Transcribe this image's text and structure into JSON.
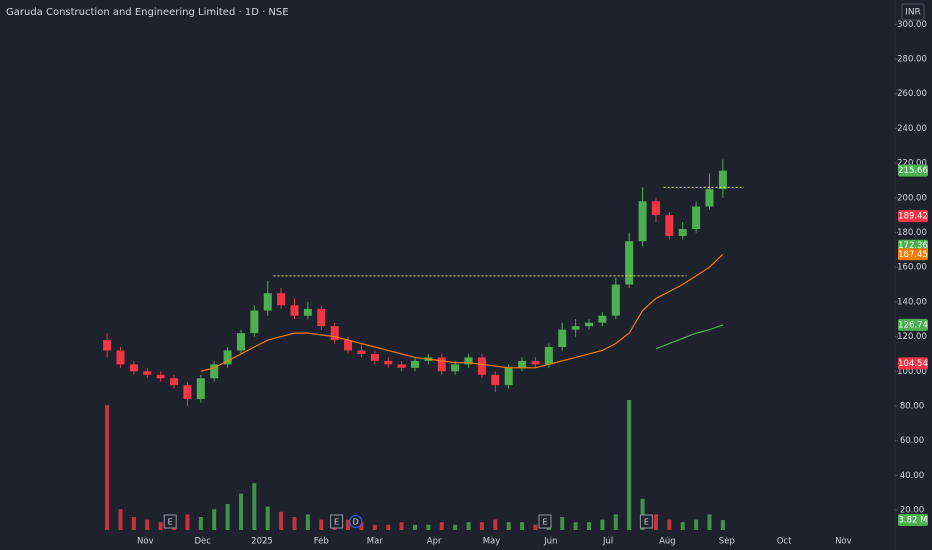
{
  "chart_data": {
    "type": "candlestick",
    "title": "Garuda Construction and Engineering Limited · 1D · NSE",
    "currency": "INR",
    "xlim": [
      -59,
      409
    ],
    "ylim": [
      -3,
      314
    ],
    "xticks": [
      {
        "value": 17,
        "label": "Nov"
      },
      {
        "value": 47,
        "label": "Dec"
      },
      {
        "value": 78,
        "label": "2025"
      },
      {
        "value": 109,
        "label": "Feb"
      },
      {
        "value": 137,
        "label": "Mar"
      },
      {
        "value": 168,
        "label": "Apr"
      },
      {
        "value": 198,
        "label": "May"
      },
      {
        "value": 229,
        "label": "Jun"
      },
      {
        "value": 259,
        "label": "Jul"
      },
      {
        "value": 290,
        "label": "Aug"
      },
      {
        "value": 321,
        "label": "Sep"
      },
      {
        "value": 351,
        "label": "Oct"
      },
      {
        "value": 382,
        "label": "Nov"
      }
    ],
    "yticks": [
      {
        "value": 20,
        "label": "20.00"
      },
      {
        "value": 40,
        "label": "40.00"
      },
      {
        "value": 60,
        "label": "60.00"
      },
      {
        "value": 80,
        "label": "80.00"
      },
      {
        "value": 100,
        "label": "100.00"
      },
      {
        "value": 120,
        "label": "120.00"
      },
      {
        "value": 140,
        "label": "140.00"
      },
      {
        "value": 160,
        "label": "160.00"
      },
      {
        "value": 180,
        "label": "180.00"
      },
      {
        "value": 200,
        "label": "200.00"
      },
      {
        "value": 220,
        "label": "220.00"
      },
      {
        "value": 240,
        "label": "240.00"
      },
      {
        "value": 260,
        "label": "260.00"
      },
      {
        "value": 280,
        "label": "280.00"
      },
      {
        "value": 300,
        "label": "300.00"
      }
    ],
    "up_color": "#4caf50",
    "down_color": "#f23645",
    "x": [
      -3,
      4,
      11,
      18,
      25,
      32,
      39,
      46,
      53,
      60,
      67,
      74,
      81,
      88,
      95,
      102,
      109,
      116,
      123,
      130,
      137,
      144,
      151,
      158,
      165,
      172,
      179,
      186,
      193,
      200,
      207,
      214,
      221,
      228,
      235,
      242,
      249,
      256,
      263,
      270,
      277,
      284,
      291,
      298,
      305,
      312,
      319
    ],
    "open": [
      118,
      112,
      104,
      100,
      98,
      96,
      92,
      84,
      96,
      104,
      112,
      122,
      135,
      145,
      138,
      132,
      136,
      126,
      118,
      112,
      110,
      106,
      104,
      102,
      106,
      108,
      100,
      104,
      108,
      98,
      92,
      102,
      106,
      104,
      114,
      124,
      126,
      128,
      132,
      150,
      175,
      198,
      190,
      178,
      182,
      195,
      205
    ],
    "high": [
      122,
      114,
      106,
      102,
      100,
      98,
      94,
      98,
      106,
      114,
      124,
      138,
      152,
      148,
      142,
      140,
      138,
      128,
      120,
      116,
      112,
      108,
      106,
      108,
      110,
      110,
      106,
      110,
      110,
      100,
      104,
      108,
      108,
      116,
      128,
      130,
      130,
      134,
      154,
      180,
      206,
      200,
      192,
      186,
      198,
      214,
      222
    ],
    "low": [
      108,
      102,
      98,
      96,
      94,
      90,
      80,
      82,
      94,
      102,
      110,
      120,
      132,
      136,
      130,
      130,
      124,
      116,
      110,
      108,
      104,
      102,
      100,
      100,
      104,
      98,
      98,
      102,
      96,
      88,
      90,
      100,
      102,
      102,
      112,
      120,
      124,
      126,
      130,
      148,
      172,
      186,
      176,
      176,
      180,
      193,
      200
    ],
    "close": [
      112,
      104,
      100,
      98,
      96,
      92,
      84,
      96,
      104,
      112,
      122,
      135,
      145,
      138,
      132,
      136,
      126,
      118,
      112,
      110,
      106,
      104,
      102,
      106,
      108,
      100,
      104,
      108,
      98,
      92,
      102,
      106,
      104,
      114,
      124,
      126,
      128,
      132,
      150,
      175,
      198,
      190,
      178,
      182,
      195,
      205,
      215.66
    ],
    "volume": [
      48,
      8,
      5,
      4,
      3,
      4,
      6,
      5,
      8,
      10,
      14,
      18,
      9,
      7,
      5,
      6,
      4,
      5,
      4,
      3,
      2,
      2,
      3,
      2,
      2,
      3,
      2,
      3,
      3,
      4,
      3,
      3,
      2,
      4,
      5,
      3,
      3,
      4,
      6,
      50,
      12,
      6,
      4,
      3,
      4,
      6,
      3.82
    ],
    "lines": [
      {
        "color": "#f57c00",
        "values": [
          null,
          null,
          null,
          null,
          null,
          null,
          null,
          100,
          102,
          106,
          110,
          114,
          118,
          120,
          122,
          122,
          121,
          120,
          118,
          116,
          114,
          112,
          110,
          108,
          107,
          106,
          105,
          105,
          104,
          103,
          102,
          102,
          102,
          104,
          106,
          108,
          110,
          112,
          116,
          122,
          135,
          142,
          146,
          150,
          155,
          160,
          167.45
        ]
      },
      {
        "color": "#4caf50",
        "values": [
          null,
          null,
          null,
          null,
          null,
          null,
          null,
          null,
          null,
          null,
          null,
          null,
          null,
          null,
          null,
          null,
          null,
          null,
          null,
          null,
          null,
          null,
          null,
          null,
          null,
          null,
          null,
          null,
          null,
          null,
          null,
          null,
          null,
          null,
          null,
          null,
          null,
          null,
          null,
          null,
          null,
          113,
          116,
          119,
          122,
          124,
          126.74
        ]
      }
    ],
    "levels": [
      {
        "value": 155,
        "x": [
          84,
          300
        ]
      },
      {
        "value": 206,
        "x": [
          288,
          330
        ]
      }
    ],
    "price_labels": [
      {
        "value": 215.66,
        "color": "#4caf50"
      },
      {
        "value": 189.42,
        "color": "#f23645"
      },
      {
        "value": 172.36,
        "color": "#4caf50"
      },
      {
        "value": 167.45,
        "color": "#f57c00"
      },
      {
        "value": 126.74,
        "color": "#4caf50"
      },
      {
        "value": 104.54,
        "color": "#f23645"
      }
    ],
    "volume_label": {
      "value": 3.82,
      "label": "3.82 M"
    },
    "events": [
      {
        "x": 30,
        "label": "E"
      },
      {
        "x": 117,
        "label": "E"
      },
      {
        "x": 127,
        "label": "D"
      },
      {
        "x": 226,
        "label": "E"
      },
      {
        "x": 279,
        "label": "E"
      }
    ]
  }
}
